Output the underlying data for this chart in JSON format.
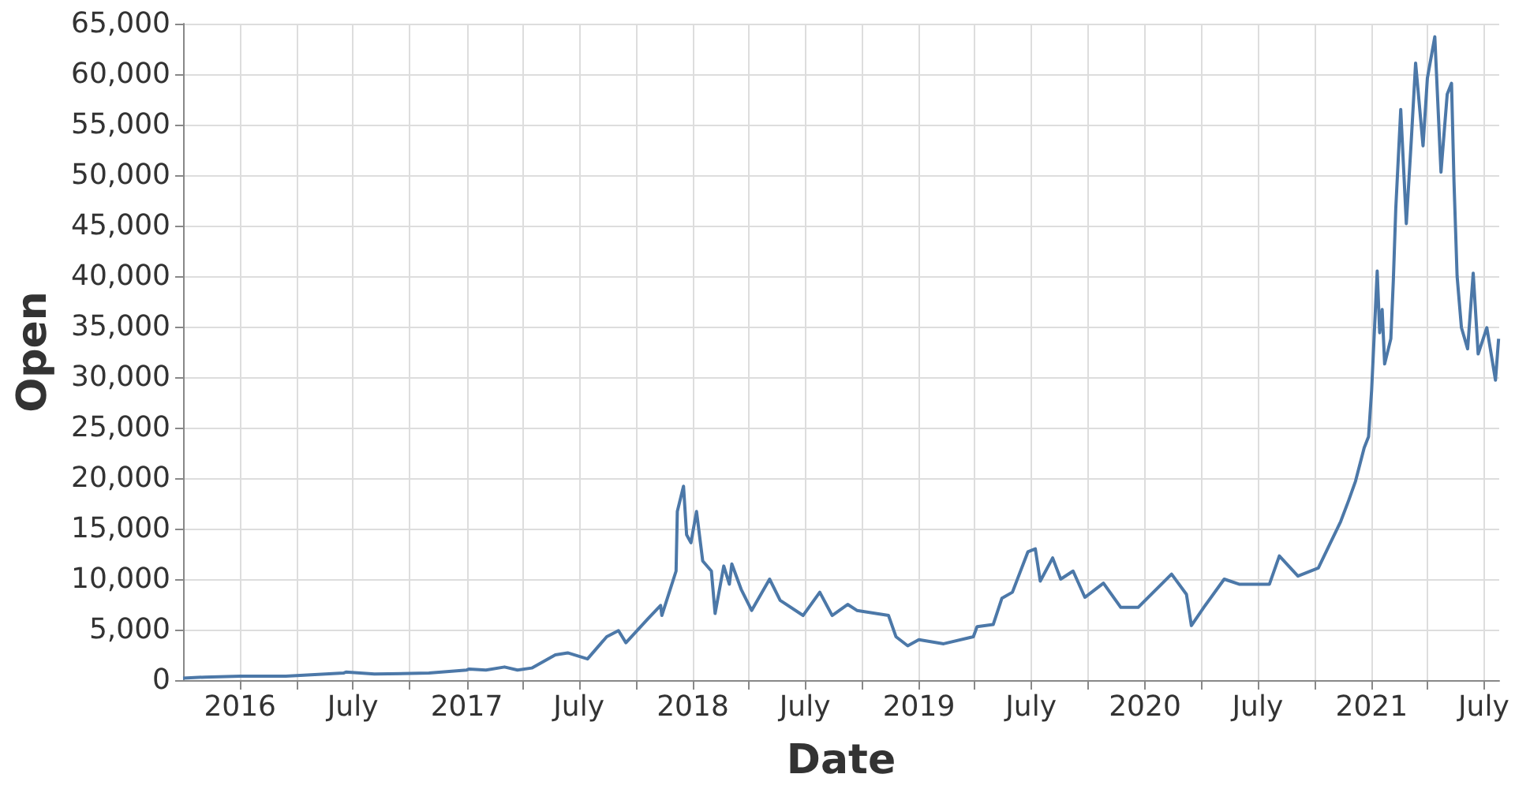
{
  "chart_data": {
    "type": "line",
    "xlabel": "Date",
    "ylabel": "Open",
    "color": "#4c78a8",
    "line_style": "solid",
    "marker": "none",
    "grid": true,
    "xlim": [
      "2015-10-01",
      "2021-07-26"
    ],
    "xticks": [
      {
        "value": "2016-01-01",
        "label": "2016"
      },
      {
        "value": "2016-04-01",
        "label": null
      },
      {
        "value": "2016-07-01",
        "label": "July"
      },
      {
        "value": "2016-10-01",
        "label": null
      },
      {
        "value": "2017-01-01",
        "label": "2017"
      },
      {
        "value": "2017-04-01",
        "label": null
      },
      {
        "value": "2017-07-01",
        "label": "July"
      },
      {
        "value": "2017-10-01",
        "label": null
      },
      {
        "value": "2018-01-01",
        "label": "2018"
      },
      {
        "value": "2018-04-01",
        "label": null
      },
      {
        "value": "2018-07-01",
        "label": "July"
      },
      {
        "value": "2018-10-01",
        "label": null
      },
      {
        "value": "2019-01-01",
        "label": "2019"
      },
      {
        "value": "2019-04-01",
        "label": null
      },
      {
        "value": "2019-07-01",
        "label": "July"
      },
      {
        "value": "2019-10-01",
        "label": null
      },
      {
        "value": "2020-01-01",
        "label": "2020"
      },
      {
        "value": "2020-04-01",
        "label": null
      },
      {
        "value": "2020-07-01",
        "label": "July"
      },
      {
        "value": "2020-10-01",
        "label": null
      },
      {
        "value": "2021-01-01",
        "label": "2021"
      },
      {
        "value": "2021-04-01",
        "label": null
      },
      {
        "value": "2021-07-01",
        "label": "July"
      }
    ],
    "ylim": [
      0,
      65000
    ],
    "yticks": [
      0,
      {
        "value": 5000,
        "label": "5,000"
      },
      {
        "value": 10000,
        "label": "10,000"
      },
      {
        "value": 15000,
        "label": "15,000"
      },
      {
        "value": 20000,
        "label": "20,000"
      },
      {
        "value": 25000,
        "label": "25,000"
      },
      {
        "value": 30000,
        "label": "30,000"
      },
      {
        "value": 35000,
        "label": "35,000"
      },
      {
        "value": 40000,
        "label": "40,000"
      },
      {
        "value": 45000,
        "label": "45,000"
      },
      {
        "value": 50000,
        "label": "50,000"
      },
      {
        "value": 55000,
        "label": "55,000"
      },
      {
        "value": 60000,
        "label": "60,000"
      },
      {
        "value": 65000,
        "label": "65,000"
      }
    ],
    "x": [
      "2015-10-01",
      "2015-11-05",
      "2016-01-01",
      "2016-03-15",
      "2016-06-16",
      "2016-06-20",
      "2016-08-05",
      "2016-11-01",
      "2017-01-01",
      "2017-01-05",
      "2017-02-01",
      "2017-03-03",
      "2017-03-24",
      "2017-04-16",
      "2017-05-24",
      "2017-06-13",
      "2017-07-15",
      "2017-08-15",
      "2017-09-03",
      "2017-09-15",
      "2017-10-21",
      "2017-11-10",
      "2017-11-12",
      "2017-12-05",
      "2017-12-07",
      "2017-12-17",
      "2017-12-22",
      "2017-12-29",
      "2018-01-07",
      "2018-01-17",
      "2018-01-31",
      "2018-02-06",
      "2018-02-20",
      "2018-03-01",
      "2018-03-05",
      "2018-03-20",
      "2018-04-06",
      "2018-05-05",
      "2018-05-22",
      "2018-06-28",
      "2018-07-25",
      "2018-08-14",
      "2018-09-08",
      "2018-09-23",
      "2018-11-13",
      "2018-11-25",
      "2018-12-14",
      "2019-01-01",
      "2019-02-10",
      "2019-03-30",
      "2019-04-05",
      "2019-05-01",
      "2019-05-15",
      "2019-06-01",
      "2019-06-26",
      "2019-07-08",
      "2019-07-16",
      "2019-08-05",
      "2019-08-18",
      "2019-09-07",
      "2019-09-26",
      "2019-10-26",
      "2019-11-23",
      "2019-12-21",
      "2020-02-13",
      "2020-03-08",
      "2020-03-16",
      "2020-04-05",
      "2020-05-08",
      "2020-06-01",
      "2020-07-20",
      "2020-08-05",
      "2020-09-04",
      "2020-10-07",
      "2020-10-25",
      "2020-11-12",
      "2020-11-25",
      "2020-12-06",
      "2020-12-20",
      "2020-12-27",
      "2021-01-01",
      "2021-01-10",
      "2021-01-14",
      "2021-01-18",
      "2021-01-22",
      "2021-02-01",
      "2021-02-05",
      "2021-02-09",
      "2021-02-17",
      "2021-02-26",
      "2021-03-06",
      "2021-03-13",
      "2021-03-25",
      "2021-04-01",
      "2021-04-13",
      "2021-04-23",
      "2021-05-03",
      "2021-05-10",
      "2021-05-14",
      "2021-05-19",
      "2021-05-26",
      "2021-06-05",
      "2021-06-14",
      "2021-06-22",
      "2021-07-06",
      "2021-07-20",
      "2021-07-25"
    ],
    "values": [
      200,
      300,
      400,
      400,
      700,
      800,
      600,
      700,
      1000,
      1100,
      1000,
      1300,
      1000,
      1200,
      2500,
      2700,
      2100,
      4300,
      4900,
      3700,
      6100,
      7400,
      6400,
      10800,
      16700,
      19200,
      14400,
      13600,
      16700,
      11800,
      10800,
      6600,
      11300,
      9500,
      11500,
      9000,
      6900,
      10000,
      7900,
      6400,
      8700,
      6400,
      7500,
      6900,
      6400,
      4300,
      3400,
      4000,
      3600,
      4300,
      5300,
      5500,
      8100,
      8700,
      12700,
      13000,
      9800,
      12100,
      10000,
      10800,
      8200,
      9600,
      7200,
      7200,
      10500,
      8500,
      5400,
      7200,
      10000,
      9500,
      9500,
      12300,
      10300,
      11100,
      13400,
      15700,
      17800,
      19700,
      23000,
      24100,
      28700,
      40500,
      34400,
      36700,
      31300,
      33800,
      39500,
      46700,
      56500,
      45200,
      53400,
      61100,
      52900,
      59600,
      63700,
      50300,
      58000,
      59100,
      49300,
      40000,
      34900,
      32800,
      40300,
      32300,
      34900,
      29700,
      33800
    ]
  }
}
